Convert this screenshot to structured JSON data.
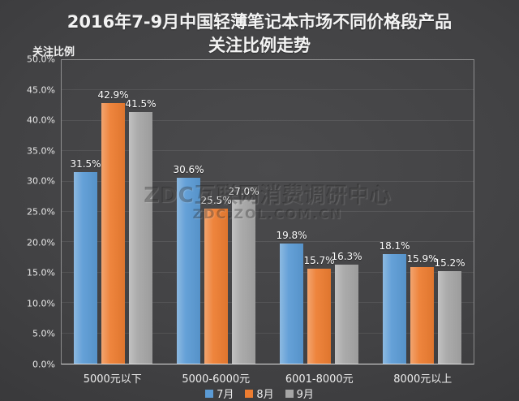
{
  "header": {
    "title_line1": "2016年7-9月中国轻薄笔记本市场不同价格段产品",
    "title_line2": "关注比例走势"
  },
  "y_axis_title": "关注比例",
  "watermark": {
    "line1": "ZDC互联网消费调研中心",
    "line2": "ZDC.ZOL.COM.CN"
  },
  "chart_data": {
    "type": "bar",
    "title": "2016年7-9月中国轻薄笔记本市场不同价格段产品关注比例走势",
    "xlabel": "",
    "ylabel": "关注比例",
    "categories": [
      "5000元以下",
      "5000-6000元",
      "6001-8000元",
      "8000元以上"
    ],
    "series": [
      {
        "name": "7月",
        "color": "#5B9BD5",
        "values": [
          31.5,
          30.6,
          19.8,
          18.1
        ]
      },
      {
        "name": "8月",
        "color": "#ED7D31",
        "values": [
          42.9,
          25.5,
          15.7,
          15.9
        ]
      },
      {
        "name": "9月",
        "color": "#A6A6A6",
        "values": [
          41.5,
          27.0,
          16.3,
          15.2
        ]
      }
    ],
    "ylim": [
      0,
      50
    ],
    "ytick_step": 5,
    "yticks": [
      "0.0%",
      "5.0%",
      "10.0%",
      "15.0%",
      "20.0%",
      "25.0%",
      "30.0%",
      "35.0%",
      "40.0%",
      "45.0%",
      "50.0%"
    ],
    "value_suffix": "%",
    "value_decimals": 1,
    "grid": true,
    "legend_position": "bottom",
    "background": "dark-gray-gradient",
    "text_color": "#ffffff"
  }
}
